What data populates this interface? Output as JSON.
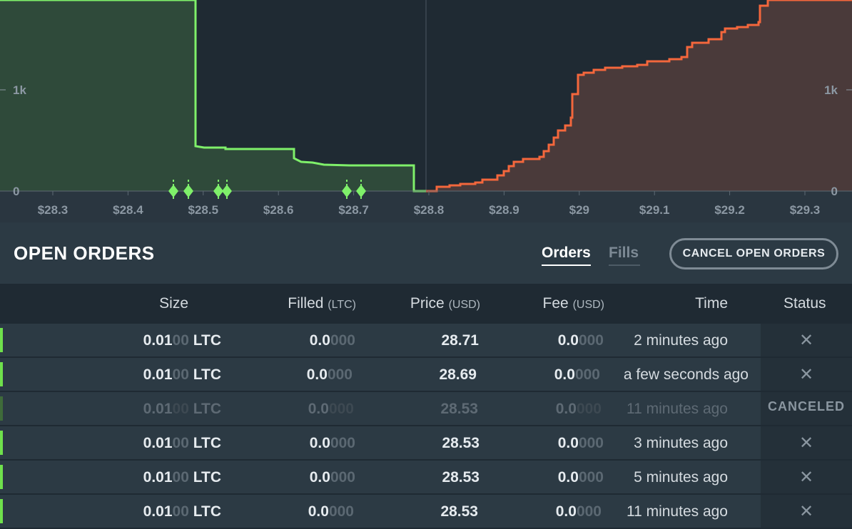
{
  "depth_chart": {
    "y_labels_left": [
      "1k",
      "0"
    ],
    "y_labels_right": [
      "1k",
      "0"
    ],
    "x_tick_labels": [
      "$28.3",
      "$28.4",
      "$28.5",
      "$28.6",
      "$28.7",
      "$28.8",
      "$28.9",
      "$29",
      "$29.1",
      "$29.2",
      "$29.3"
    ],
    "colors": {
      "bid_line": "#7ff06a",
      "bid_fill": "#2f4a3a",
      "ask_line": "#f4673c",
      "ask_fill": "#4a3a3a",
      "order_marker": "#7ff06a"
    },
    "icons": {
      "order_marker": "diamond-icon"
    }
  },
  "orders_panel": {
    "title": "OPEN ORDERS",
    "tabs": [
      {
        "label": "Orders",
        "active": true
      },
      {
        "label": "Fills",
        "active": false
      }
    ],
    "cancel_button_label": "CANCEL OPEN ORDERS"
  },
  "table": {
    "columns": [
      {
        "label": "Size",
        "unit": ""
      },
      {
        "label": "Filled",
        "unit": "(LTC)"
      },
      {
        "label": "Price",
        "unit": "(USD)"
      },
      {
        "label": "Fee",
        "unit": "(USD)"
      },
      {
        "label": "Time",
        "unit": ""
      },
      {
        "label": "Status",
        "unit": ""
      }
    ],
    "rows": [
      {
        "size_main": "0.01",
        "size_dim": "00",
        "size_unit": "LTC",
        "filled_main": "0.0",
        "filled_dim": "000",
        "price": "28.71",
        "fee_main": "0.0",
        "fee_dim": "000",
        "time": "2 minutes ago",
        "status": "",
        "status_icon": "close-icon",
        "canceled": false
      },
      {
        "size_main": "0.01",
        "size_dim": "00",
        "size_unit": "LTC",
        "filled_main": "0.0",
        "filled_dim": "000",
        "price": "28.69",
        "fee_main": "0.0",
        "fee_dim": "000",
        "time": "a few seconds ago",
        "status": "",
        "status_icon": "close-icon",
        "canceled": false
      },
      {
        "size_main": "0.01",
        "size_dim": "00",
        "size_unit": "LTC",
        "filled_main": "0.0",
        "filled_dim": "000",
        "price": "28.53",
        "fee_main": "0.0",
        "fee_dim": "000",
        "time": "11 minutes ago",
        "status": "CANCELED",
        "status_icon": "",
        "canceled": true
      },
      {
        "size_main": "0.01",
        "size_dim": "00",
        "size_unit": "LTC",
        "filled_main": "0.0",
        "filled_dim": "000",
        "price": "28.53",
        "fee_main": "0.0",
        "fee_dim": "000",
        "time": "3 minutes ago",
        "status": "",
        "status_icon": "close-icon",
        "canceled": false
      },
      {
        "size_main": "0.01",
        "size_dim": "00",
        "size_unit": "LTC",
        "filled_main": "0.0",
        "filled_dim": "000",
        "price": "28.53",
        "fee_main": "0.0",
        "fee_dim": "000",
        "time": "5 minutes ago",
        "status": "",
        "status_icon": "close-icon",
        "canceled": false
      },
      {
        "size_main": "0.01",
        "size_dim": "00",
        "size_unit": "LTC",
        "filled_main": "0.0",
        "filled_dim": "000",
        "price": "28.53",
        "fee_main": "0.0",
        "fee_dim": "000",
        "time": "11 minutes ago",
        "status": "",
        "status_icon": "close-icon",
        "canceled": false
      }
    ]
  }
}
